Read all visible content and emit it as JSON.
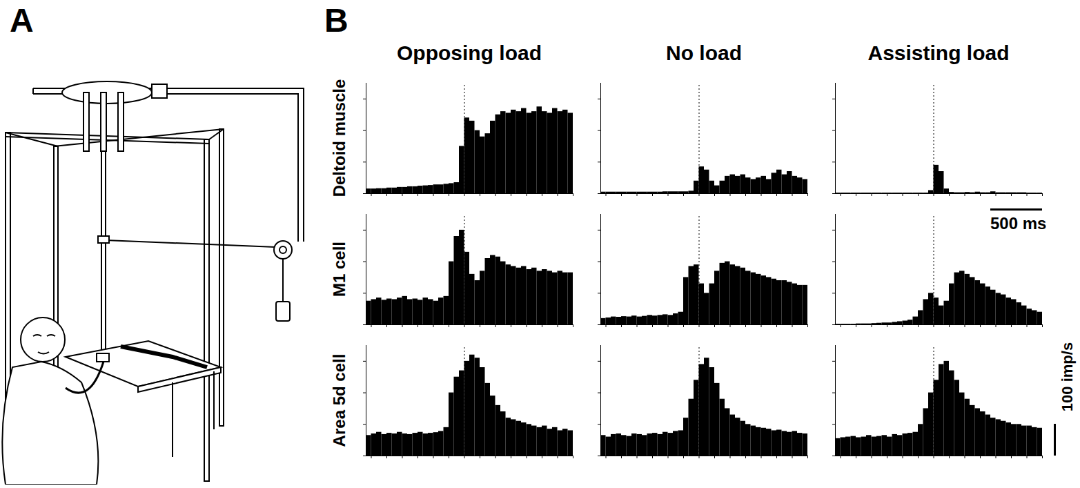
{
  "figure": {
    "panel_labels": [
      "A",
      "B"
    ],
    "scale_bars": [
      {
        "label": "500 ms",
        "value": 500,
        "axis": "x"
      },
      {
        "label": "100 imp/s",
        "value": 100,
        "axis": "y"
      }
    ]
  },
  "chart_data": [
    {
      "type": "histogram",
      "title": "Opposing load",
      "ylabel": "Deltoid muscle",
      "color": "#000000",
      "bins": [
        -950,
        -900,
        -850,
        -800,
        -750,
        -700,
        -650,
        -600,
        -550,
        -500,
        -450,
        -400,
        -350,
        -300,
        -250,
        -200,
        -150,
        -100,
        -50,
        0,
        50,
        100,
        150,
        200,
        250,
        300,
        350,
        400,
        450,
        500,
        550,
        600,
        650,
        700,
        750,
        800,
        850,
        900,
        950,
        1000,
        1050
      ],
      "values": [
        15,
        15,
        16,
        16,
        18,
        18,
        20,
        20,
        22,
        22,
        24,
        25,
        26,
        28,
        28,
        30,
        32,
        35,
        150,
        240,
        230,
        200,
        180,
        190,
        230,
        250,
        260,
        255,
        265,
        260,
        270,
        255,
        260,
        275,
        260,
        255,
        270,
        260,
        265,
        255
      ],
      "xlim": [
        -950,
        1050
      ],
      "xticks": [
        -900,
        -750,
        -600,
        -450,
        -300,
        -150,
        0,
        150,
        300,
        450,
        600,
        750,
        900,
        1050
      ],
      "ylim": [
        0,
        350
      ],
      "yticks": [
        0,
        100,
        200,
        300
      ],
      "tick_labels": false,
      "event_x": 0
    },
    {
      "type": "histogram",
      "title": "No load",
      "color": "#000000",
      "bins": [
        -950,
        -900,
        -850,
        -800,
        -750,
        -700,
        -650,
        -600,
        -550,
        -500,
        -450,
        -400,
        -350,
        -300,
        -250,
        -200,
        -150,
        -100,
        -50,
        0,
        50,
        100,
        150,
        200,
        250,
        300,
        350,
        400,
        450,
        500,
        550,
        600,
        650,
        700,
        750,
        800,
        850,
        900,
        950,
        1000,
        1050
      ],
      "values": [
        5,
        5,
        5,
        5,
        5,
        5,
        5,
        5,
        5,
        5,
        5,
        5,
        6,
        6,
        6,
        6,
        6,
        8,
        40,
        85,
        75,
        40,
        25,
        40,
        55,
        60,
        55,
        60,
        50,
        45,
        50,
        55,
        45,
        65,
        75,
        60,
        70,
        55,
        50,
        45
      ],
      "xlim": [
        -950,
        1050
      ],
      "xticks": [
        -900,
        -750,
        -600,
        -450,
        -300,
        -150,
        0,
        150,
        300,
        450,
        600,
        750,
        900,
        1050
      ],
      "ylim": [
        0,
        350
      ],
      "yticks": [
        0,
        100,
        200,
        300
      ],
      "tick_labels": false,
      "event_x": 0
    },
    {
      "type": "histogram",
      "title": "Assisting load",
      "color": "#000000",
      "bins": [
        -950,
        -900,
        -850,
        -800,
        -750,
        -700,
        -650,
        -600,
        -550,
        -500,
        -450,
        -400,
        -350,
        -300,
        -250,
        -200,
        -150,
        -100,
        -50,
        0,
        50,
        100,
        150,
        200,
        250,
        300,
        350,
        400,
        450,
        500,
        550,
        600,
        650,
        700,
        750,
        800,
        850,
        900,
        950,
        1000,
        1050
      ],
      "values": [
        2,
        2,
        2,
        2,
        2,
        2,
        2,
        2,
        2,
        2,
        2,
        2,
        2,
        2,
        2,
        2,
        2,
        2,
        10,
        90,
        70,
        15,
        4,
        3,
        3,
        4,
        3,
        5,
        3,
        3,
        6,
        3,
        3,
        3,
        3,
        3,
        3,
        2,
        2,
        2
      ],
      "xlim": [
        -950,
        1050
      ],
      "xticks": [
        -900,
        -750,
        -600,
        -450,
        -300,
        -150,
        0,
        150,
        300,
        450,
        600,
        750,
        900,
        1050
      ],
      "ylim": [
        0,
        350
      ],
      "yticks": [
        0,
        100,
        200,
        300
      ],
      "tick_labels": false,
      "event_x": 0
    },
    {
      "type": "histogram",
      "ylabel": "M1 cell",
      "color": "#000000",
      "bins": [
        -950,
        -900,
        -850,
        -800,
        -750,
        -700,
        -650,
        -600,
        -550,
        -500,
        -450,
        -400,
        -350,
        -300,
        -250,
        -200,
        -150,
        -100,
        -50,
        0,
        50,
        100,
        150,
        200,
        250,
        300,
        350,
        400,
        450,
        500,
        550,
        600,
        650,
        700,
        750,
        800,
        850,
        900,
        950,
        1000,
        1050
      ],
      "values": [
        75,
        80,
        85,
        78,
        82,
        80,
        85,
        90,
        80,
        82,
        78,
        85,
        80,
        75,
        85,
        90,
        200,
        280,
        300,
        230,
        160,
        140,
        170,
        210,
        220,
        215,
        200,
        190,
        185,
        180,
        185,
        175,
        180,
        170,
        175,
        170,
        165,
        170,
        165,
        165
      ],
      "xlim": [
        -950,
        1050
      ],
      "xticks": [
        -900,
        -750,
        -600,
        -450,
        -300,
        -150,
        0,
        150,
        300,
        450,
        600,
        750,
        900,
        1050
      ],
      "ylim": [
        0,
        350
      ],
      "yticks": [
        0,
        100,
        200,
        300
      ],
      "tick_labels": false,
      "event_x": 0
    },
    {
      "type": "histogram",
      "color": "#000000",
      "bins": [
        -950,
        -900,
        -850,
        -800,
        -750,
        -700,
        -650,
        -600,
        -550,
        -500,
        -450,
        -400,
        -350,
        -300,
        -250,
        -200,
        -150,
        -100,
        -50,
        0,
        50,
        100,
        150,
        200,
        250,
        300,
        350,
        400,
        450,
        500,
        550,
        600,
        650,
        700,
        750,
        800,
        850,
        900,
        950,
        1000,
        1050
      ],
      "values": [
        20,
        22,
        25,
        24,
        26,
        25,
        28,
        25,
        27,
        30,
        28,
        30,
        32,
        30,
        35,
        40,
        150,
        185,
        190,
        130,
        100,
        130,
        170,
        195,
        200,
        190,
        185,
        180,
        170,
        165,
        160,
        155,
        150,
        145,
        140,
        140,
        135,
        130,
        125,
        125
      ],
      "xlim": [
        -950,
        1050
      ],
      "xticks": [
        -900,
        -750,
        -600,
        -450,
        -300,
        -150,
        0,
        150,
        300,
        450,
        600,
        750,
        900,
        1050
      ],
      "ylim": [
        0,
        350
      ],
      "yticks": [
        0,
        100,
        200,
        300
      ],
      "tick_labels": false,
      "event_x": 0
    },
    {
      "type": "histogram",
      "color": "#000000",
      "bins": [
        -950,
        -900,
        -850,
        -800,
        -750,
        -700,
        -650,
        -600,
        -550,
        -500,
        -450,
        -400,
        -350,
        -300,
        -250,
        -200,
        -150,
        -100,
        -50,
        0,
        50,
        100,
        150,
        200,
        250,
        300,
        350,
        400,
        450,
        500,
        550,
        600,
        650,
        700,
        750,
        800,
        850,
        900,
        950,
        1000,
        1050
      ],
      "values": [
        2,
        2,
        2,
        2,
        3,
        3,
        3,
        4,
        5,
        6,
        6,
        8,
        10,
        12,
        15,
        25,
        45,
        80,
        100,
        85,
        60,
        75,
        130,
        165,
        170,
        160,
        150,
        140,
        130,
        120,
        110,
        100,
        95,
        85,
        80,
        70,
        60,
        50,
        45,
        40
      ],
      "xlim": [
        -950,
        1050
      ],
      "xticks": [
        -900,
        -750,
        -600,
        -450,
        -300,
        -150,
        0,
        150,
        300,
        450,
        600,
        750,
        900,
        1050
      ],
      "ylim": [
        0,
        350
      ],
      "yticks": [
        0,
        100,
        200,
        300
      ],
      "tick_labels": false,
      "event_x": 0
    },
    {
      "type": "histogram",
      "ylabel": "Area 5d cell",
      "color": "#000000",
      "bins": [
        -950,
        -900,
        -850,
        -800,
        -750,
        -700,
        -650,
        -600,
        -550,
        -500,
        -450,
        -400,
        -350,
        -300,
        -250,
        -200,
        -150,
        -100,
        -50,
        0,
        50,
        100,
        150,
        200,
        250,
        300,
        350,
        400,
        450,
        500,
        550,
        600,
        650,
        700,
        750,
        800,
        850,
        900,
        950,
        1000,
        1050
      ],
      "values": [
        65,
        70,
        75,
        68,
        72,
        70,
        75,
        70,
        68,
        72,
        75,
        70,
        72,
        74,
        78,
        90,
        200,
        250,
        270,
        300,
        320,
        310,
        280,
        230,
        190,
        160,
        140,
        120,
        115,
        110,
        105,
        100,
        95,
        90,
        95,
        85,
        90,
        80,
        85,
        80
      ],
      "xlim": [
        -950,
        1050
      ],
      "xticks": [
        -900,
        -750,
        -600,
        -450,
        -300,
        -150,
        0,
        150,
        300,
        450,
        600,
        750,
        900,
        1050
      ],
      "ylim": [
        0,
        350
      ],
      "yticks": [
        0,
        100,
        200,
        300
      ],
      "tick_labels": false,
      "event_x": 0
    },
    {
      "type": "histogram",
      "color": "#000000",
      "bins": [
        -950,
        -900,
        -850,
        -800,
        -750,
        -700,
        -650,
        -600,
        -550,
        -500,
        -450,
        -400,
        -350,
        -300,
        -250,
        -200,
        -150,
        -100,
        -50,
        0,
        50,
        100,
        150,
        200,
        250,
        300,
        350,
        400,
        450,
        500,
        550,
        600,
        650,
        700,
        750,
        800,
        850,
        900,
        950,
        1000,
        1050
      ],
      "values": [
        65,
        60,
        68,
        70,
        65,
        62,
        70,
        68,
        65,
        70,
        72,
        68,
        75,
        72,
        78,
        80,
        120,
        180,
        240,
        290,
        310,
        280,
        230,
        180,
        150,
        130,
        120,
        110,
        100,
        95,
        90,
        88,
        85,
        80,
        82,
        78,
        75,
        78,
        72,
        70
      ],
      "xlim": [
        -950,
        1050
      ],
      "xticks": [
        -900,
        -750,
        -600,
        -450,
        -300,
        -150,
        0,
        150,
        300,
        450,
        600,
        750,
        900,
        1050
      ],
      "ylim": [
        0,
        350
      ],
      "yticks": [
        0,
        100,
        200,
        300
      ],
      "tick_labels": false,
      "event_x": 0
    },
    {
      "type": "histogram",
      "color": "#000000",
      "bins": [
        -950,
        -900,
        -850,
        -800,
        -750,
        -700,
        -650,
        -600,
        -550,
        -500,
        -450,
        -400,
        -350,
        -300,
        -250,
        -200,
        -150,
        -100,
        -50,
        0,
        50,
        100,
        150,
        200,
        250,
        300,
        350,
        400,
        450,
        500,
        550,
        600,
        650,
        700,
        750,
        800,
        850,
        900,
        950,
        1000,
        1050
      ],
      "values": [
        55,
        58,
        60,
        62,
        58,
        60,
        65,
        60,
        62,
        65,
        60,
        68,
        65,
        70,
        72,
        75,
        100,
        150,
        200,
        240,
        290,
        300,
        270,
        240,
        200,
        180,
        160,
        150,
        140,
        130,
        120,
        115,
        110,
        105,
        100,
        100,
        95,
        95,
        90,
        88
      ],
      "xlim": [
        -950,
        1050
      ],
      "xticks": [
        -900,
        -750,
        -600,
        -450,
        -300,
        -150,
        0,
        150,
        300,
        450,
        600,
        750,
        900,
        1050
      ],
      "ylim": [
        0,
        350
      ],
      "yticks": [
        0,
        100,
        200,
        300
      ],
      "tick_labels": false,
      "event_x": 0
    }
  ]
}
